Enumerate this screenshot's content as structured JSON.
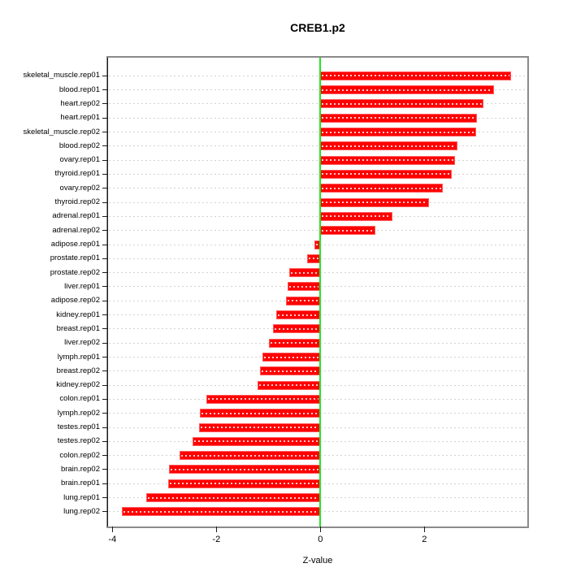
{
  "chart": {
    "title": "CREB1.p2",
    "xlabel": "Z-value"
  },
  "chart_data": {
    "type": "bar",
    "orientation": "horizontal",
    "title": "CREB1.p2",
    "xlabel": "Z-value",
    "ylabel": "",
    "xlim": [
      -4.09,
      3.97
    ],
    "x_ticks": [
      -4,
      -2,
      0,
      2
    ],
    "grid": true,
    "zero_line_at": 0,
    "legend": "none",
    "categories": [
      "skeletal_muscle.rep01",
      "blood.rep01",
      "heart.rep02",
      "heart.rep01",
      "skeletal_muscle.rep02",
      "blood.rep02",
      "ovary.rep01",
      "thyroid.rep01",
      "ovary.rep02",
      "thyroid.rep02",
      "adrenal.rep01",
      "adrenal.rep02",
      "adipose.rep01",
      "prostate.rep01",
      "prostate.rep02",
      "liver.rep01",
      "adipose.rep02",
      "kidney.rep01",
      "breast.rep01",
      "liver.rep02",
      "lymph.rep01",
      "breast.rep02",
      "kidney.rep02",
      "colon.rep01",
      "lymph.rep02",
      "testes.rep01",
      "testes.rep02",
      "colon.rep02",
      "brain.rep02",
      "brain.rep01",
      "lung.rep01",
      "lung.rep02"
    ],
    "values": [
      3.67,
      3.34,
      3.14,
      3.01,
      3.0,
      2.64,
      2.59,
      2.53,
      2.36,
      2.09,
      1.39,
      1.06,
      -0.11,
      -0.25,
      -0.6,
      -0.63,
      -0.66,
      -0.85,
      -0.91,
      -0.99,
      -1.11,
      -1.16,
      -1.21,
      -2.19,
      -2.32,
      -2.33,
      -2.46,
      -2.71,
      -2.91,
      -2.93,
      -3.35,
      -3.81
    ],
    "colors": {
      "bar": "#ff0000",
      "bar_border": "#ff5c5c",
      "bar_inner_dash": "rgba(255,255,255,0.8)",
      "zero_line": "#21e421",
      "gridline": "#d2d2d2",
      "box_border": "#8a8a8a",
      "axis": "#1a1a1a",
      "text": "#000000",
      "background": "#ffffff"
    }
  }
}
